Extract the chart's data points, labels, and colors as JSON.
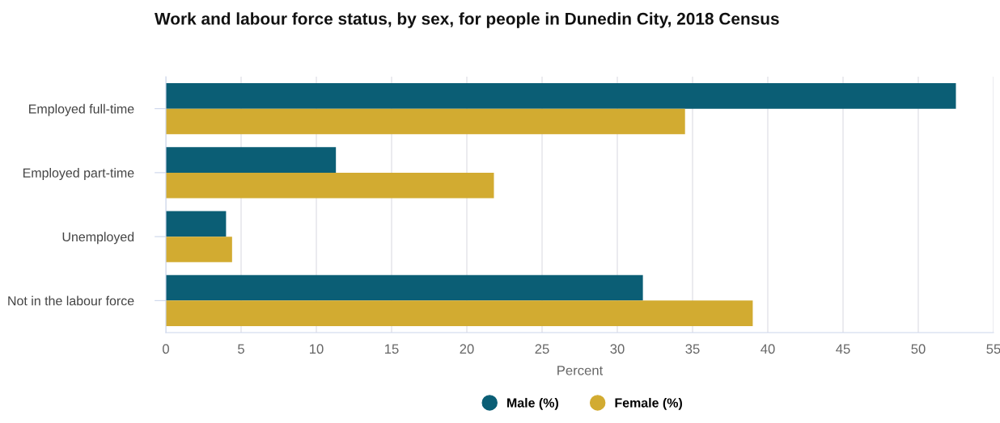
{
  "chart_data": {
    "type": "bar",
    "orientation": "horizontal",
    "title": "Work and labour force status, by sex, for people in Dunedin City, 2018 Census",
    "xlabel": "Percent",
    "categories": [
      "Employed full-time",
      "Employed part-time",
      "Unemployed",
      "Not in the labour force"
    ],
    "series": [
      {
        "name": "Male (%)",
        "color": "#0b5e75",
        "values": [
          52.5,
          11.3,
          4.0,
          31.7
        ]
      },
      {
        "name": "Female (%)",
        "color": "#d2ab31",
        "values": [
          34.5,
          21.8,
          4.4,
          39.0
        ]
      }
    ],
    "xlim": [
      0,
      55
    ],
    "xticks": [
      0,
      5,
      10,
      15,
      20,
      25,
      30,
      35,
      40,
      45,
      50,
      55
    ],
    "grid": "x",
    "legend": "bottom"
  }
}
